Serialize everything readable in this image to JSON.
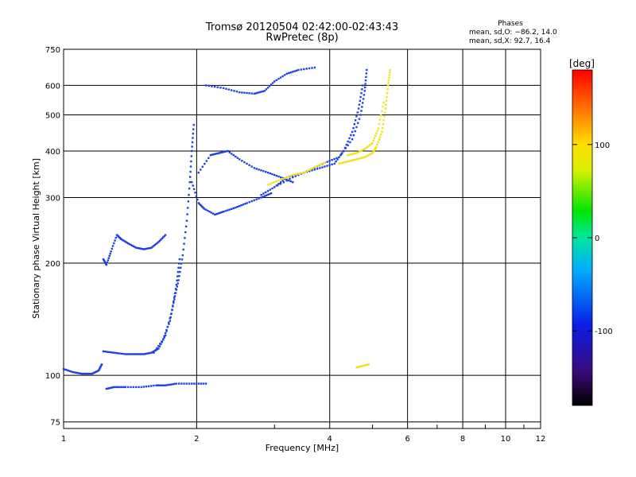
{
  "chart_data": {
    "type": "scatter",
    "title": "Tromsø 20120504 02:42:00-02:43:43",
    "subtitle": "RwPretec (8p)",
    "xlabel": "Frequency [MHz]",
    "ylabel": "Stationary phase Virtual Height [km]",
    "x_scale": "log",
    "y_scale": "log",
    "xlim": [
      1,
      12
    ],
    "ylim": [
      72,
      750
    ],
    "x_ticks": [
      1,
      2,
      4,
      6,
      8,
      10,
      12
    ],
    "y_ticks": [
      75,
      100,
      200,
      300,
      400,
      500,
      600,
      750
    ],
    "grid": true,
    "phases_header": "Phases",
    "phases_lines": [
      "mean, sd,O: −86.2, 14.0",
      "mean, sd,X:  92.7, 16.4"
    ],
    "colorbar": {
      "label": "[deg]",
      "range": [
        -180,
        180
      ],
      "ticks": [
        100,
        0,
        -100
      ]
    },
    "series": [
      {
        "mode": "O",
        "color": "#1e40e6",
        "segments": [
          [
            [
              1.0,
              104
            ],
            [
              1.05,
              102
            ],
            [
              1.1,
              101
            ],
            [
              1.16,
              101
            ],
            [
              1.2,
              103
            ],
            [
              1.22,
              107
            ]
          ],
          [
            [
              1.23,
              205
            ],
            [
              1.25,
              198
            ],
            [
              1.28,
              215
            ],
            [
              1.32,
              238
            ],
            [
              1.35,
              232
            ],
            [
              1.4,
              226
            ],
            [
              1.46,
              220
            ],
            [
              1.52,
              218
            ],
            [
              1.58,
              220
            ],
            [
              1.64,
              228
            ],
            [
              1.7,
              238
            ]
          ],
          [
            [
              1.23,
              116
            ],
            [
              1.3,
              115
            ],
            [
              1.38,
              114
            ],
            [
              1.45,
              114
            ],
            [
              1.52,
              114
            ],
            [
              1.58,
              115
            ],
            [
              1.64,
              118
            ],
            [
              1.7,
              128
            ],
            [
              1.76,
              150
            ],
            [
              1.8,
              175
            ],
            [
              1.83,
              205
            ]
          ],
          [
            [
              1.6,
              115
            ],
            [
              1.68,
              125
            ],
            [
              1.74,
              140
            ],
            [
              1.78,
              160
            ],
            [
              1.82,
              180
            ],
            [
              1.86,
              210
            ],
            [
              1.9,
              260
            ],
            [
              1.93,
              330
            ],
            [
              1.95,
              400
            ],
            [
              1.97,
              470
            ]
          ],
          [
            [
              1.95,
              330
            ],
            [
              2.02,
              290
            ],
            [
              2.08,
              280
            ],
            [
              2.2,
              270
            ],
            [
              2.3,
              275
            ],
            [
              2.45,
              282
            ],
            [
              2.6,
              290
            ],
            [
              2.8,
              300
            ],
            [
              2.95,
              308
            ]
          ],
          [
            [
              2.02,
              350
            ],
            [
              2.15,
              390
            ],
            [
              2.25,
              395
            ],
            [
              2.35,
              400
            ],
            [
              2.5,
              380
            ],
            [
              2.7,
              360
            ],
            [
              2.9,
              350
            ],
            [
              3.1,
              340
            ],
            [
              3.3,
              330
            ]
          ],
          [
            [
              1.25,
              92
            ],
            [
              1.3,
              93
            ],
            [
              1.38,
              93
            ],
            [
              1.5,
              93
            ],
            [
              1.62,
              94
            ],
            [
              1.7,
              94
            ],
            [
              1.8,
              95
            ],
            [
              1.95,
              95
            ],
            [
              2.1,
              95
            ]
          ],
          [
            [
              2.1,
              600
            ],
            [
              2.3,
              590
            ],
            [
              2.5,
              575
            ],
            [
              2.7,
              570
            ],
            [
              2.85,
              580
            ],
            [
              3.0,
              615
            ],
            [
              3.2,
              645
            ],
            [
              3.4,
              660
            ],
            [
              3.7,
              670
            ]
          ],
          [
            [
              3.0,
              320
            ],
            [
              3.3,
              340
            ],
            [
              3.6,
              355
            ],
            [
              3.9,
              372
            ],
            [
              4.2,
              385
            ],
            [
              4.5,
              430
            ],
            [
              4.7,
              500
            ],
            [
              4.8,
              580
            ],
            [
              4.85,
              660
            ]
          ],
          [
            [
              2.8,
              305
            ],
            [
              3.0,
              320
            ],
            [
              3.2,
              340
            ],
            [
              3.5,
              350
            ],
            [
              3.8,
              360
            ],
            [
              4.1,
              370
            ],
            [
              4.3,
              400
            ],
            [
              4.5,
              450
            ],
            [
              4.65,
              520
            ],
            [
              4.75,
              600
            ]
          ]
        ]
      },
      {
        "mode": "X",
        "color": "#f2e21e",
        "segments": [
          [
            [
              4.2,
              370
            ],
            [
              4.4,
              375
            ],
            [
              4.6,
              380
            ],
            [
              4.8,
              385
            ],
            [
              5.0,
              395
            ],
            [
              5.1,
              410
            ],
            [
              5.25,
              450
            ],
            [
              5.35,
              520
            ],
            [
              5.42,
              600
            ],
            [
              5.48,
              660
            ]
          ],
          [
            [
              4.4,
              390
            ],
            [
              4.6,
              395
            ],
            [
              4.8,
              405
            ],
            [
              5.0,
              420
            ],
            [
              5.15,
              460
            ],
            [
              5.3,
              540
            ]
          ],
          [
            [
              4.6,
              105
            ],
            [
              4.75,
              106
            ],
            [
              4.9,
              107
            ]
          ],
          [
            [
              2.9,
              325
            ],
            [
              3.1,
              335
            ],
            [
              3.3,
              345
            ],
            [
              3.5,
              350
            ],
            [
              3.7,
              362
            ],
            [
              3.9,
              372
            ]
          ]
        ]
      }
    ]
  }
}
